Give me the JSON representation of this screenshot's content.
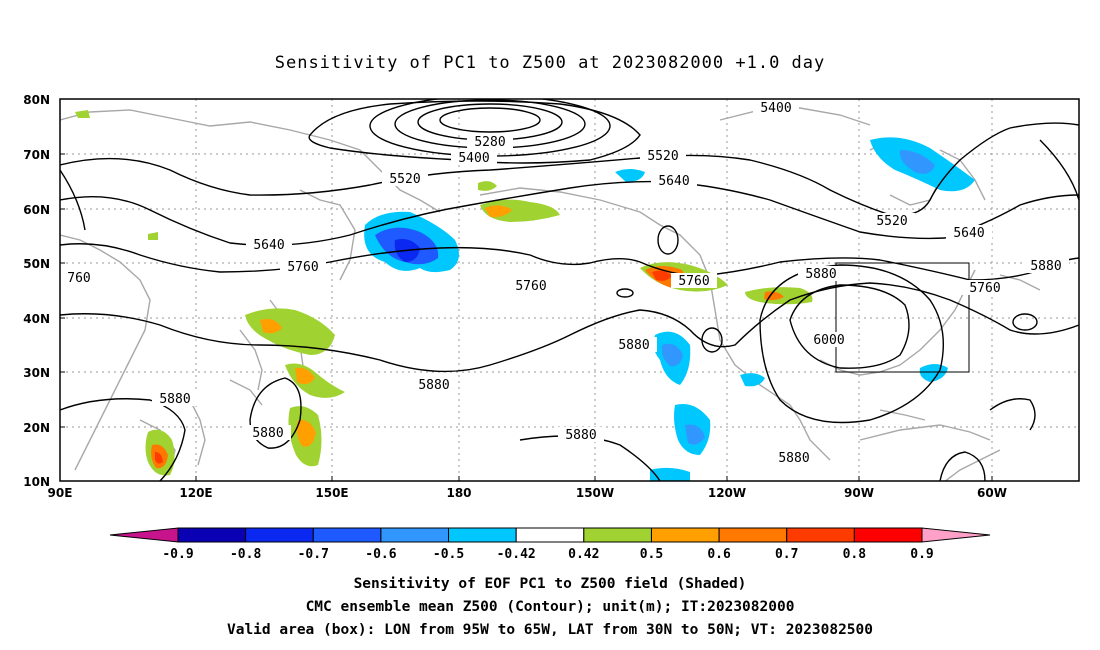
{
  "title": "Sensitivity of PC1 to Z500 at 2023082000 +1.0 day",
  "map": {
    "lat_labels": [
      "80N",
      "70N",
      "60N",
      "50N",
      "40N",
      "30N",
      "20N",
      "10N"
    ],
    "lon_labels": [
      "90E",
      "120E",
      "150E",
      "180",
      "150W",
      "120W",
      "90W",
      "60W"
    ],
    "contour_labels": [
      {
        "text": "5400"
      },
      {
        "text": "5280"
      },
      {
        "text": "5400"
      },
      {
        "text": "5520"
      },
      {
        "text": "5520"
      },
      {
        "text": "5640"
      },
      {
        "text": "5640"
      },
      {
        "text": "5760"
      },
      {
        "text": "760"
      },
      {
        "text": "5760"
      },
      {
        "text": "5760"
      },
      {
        "text": "5520"
      },
      {
        "text": "5640"
      },
      {
        "text": "5880"
      },
      {
        "text": "5880"
      },
      {
        "text": "5760"
      },
      {
        "text": "6000"
      },
      {
        "text": "5880"
      },
      {
        "text": "5880"
      },
      {
        "text": "5880"
      },
      {
        "text": "5880"
      },
      {
        "text": "5880"
      },
      {
        "text": "5880"
      }
    ],
    "valid_box": {
      "lon_from": "95W",
      "lon_to": "65W",
      "lat_from": "30N",
      "lat_to": "50N"
    }
  },
  "colorbar": {
    "labels": [
      "-0.9",
      "-0.8",
      "-0.7",
      "-0.6",
      "-0.5",
      "-0.42",
      "0.42",
      "0.5",
      "0.6",
      "0.7",
      "0.8",
      "0.9"
    ],
    "colors": [
      "#0a00b4",
      "#0a28f0",
      "#1e5aff",
      "#3296ff",
      "#00c8ff",
      "#ffffff",
      "#a0d232",
      "#ffa000",
      "#ff7800",
      "#ff3c00",
      "#ff0000"
    ],
    "low_end_color": "#c8148c",
    "high_end_color": "#ffa0c8"
  },
  "captions": {
    "line1": "Sensitivity of EOF PC1 to Z500 field (Shaded)",
    "line2": "CMC ensemble mean Z500 (Contour); unit(m); IT:2023082000",
    "line3": "Valid area (box): LON from 95W to 65W, LAT from 30N to 50N; VT: 2023082500"
  }
}
